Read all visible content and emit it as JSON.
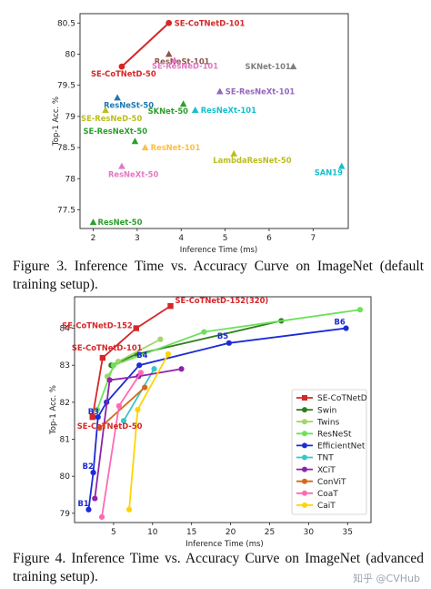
{
  "chart_data": [
    {
      "type": "scatter",
      "xlabel": "Inference Time (ms)",
      "ylabel": "Top-1 Acc. %",
      "xlim": [
        1.7,
        7.8
      ],
      "ylim": [
        77.2,
        80.65
      ],
      "xticks": [
        2,
        3,
        4,
        5,
        6,
        7
      ],
      "yticks": [
        77.5,
        78.0,
        78.5,
        79.0,
        79.5,
        80.0,
        80.5
      ],
      "points": [
        {
          "name": "SE-CoTNetD-101",
          "x": 3.72,
          "y": 80.5,
          "marker": "circle",
          "color": "#d62728"
        },
        {
          "name": "SE-CoTNetD-50",
          "x": 2.65,
          "y": 79.8,
          "marker": "circle",
          "color": "#d62728"
        },
        {
          "name": "ResNeSt-101",
          "x": 3.72,
          "y": 80.0,
          "marker": "triangle",
          "color": "#8c564b"
        },
        {
          "name": "SE-ResNeD-101",
          "x": 3.85,
          "y": 79.9,
          "marker": "triangle",
          "color": "#e377c2"
        },
        {
          "name": "SKNet-101",
          "x": 6.55,
          "y": 79.8,
          "marker": "triangle",
          "color": "#7f7f7f"
        },
        {
          "name": "SE-ResNeXt-101",
          "x": 4.88,
          "y": 79.4,
          "marker": "triangle",
          "color": "#9467bd"
        },
        {
          "name": "ResNeSt-50",
          "x": 2.55,
          "y": 79.3,
          "marker": "triangle",
          "color": "#1f77b4"
        },
        {
          "name": "SKNet-50",
          "x": 4.05,
          "y": 79.2,
          "marker": "triangle",
          "color": "#2ca02c"
        },
        {
          "name": "ResNeXt-101",
          "x": 4.32,
          "y": 79.1,
          "marker": "triangle",
          "color": "#17becf"
        },
        {
          "name": "SE-ResNeD-50",
          "x": 2.28,
          "y": 79.1,
          "marker": "triangle",
          "color": "#bcbd22"
        },
        {
          "name": "SE-ResNeXt-50",
          "x": 2.95,
          "y": 78.6,
          "marker": "triangle",
          "color": "#2ca02c"
        },
        {
          "name": "ResNet-101",
          "x": 3.18,
          "y": 78.5,
          "marker": "triangle",
          "color": "#ffbf40"
        },
        {
          "name": "LambdaResNet-50",
          "x": 5.2,
          "y": 78.4,
          "marker": "triangle",
          "color": "#bcbd22"
        },
        {
          "name": "SAN19",
          "x": 7.65,
          "y": 78.2,
          "marker": "triangle",
          "color": "#17becf"
        },
        {
          "name": "ResNeXt-50",
          "x": 2.65,
          "y": 78.2,
          "marker": "triangle",
          "color": "#e377c2"
        },
        {
          "name": "ResNet-50",
          "x": 2.0,
          "y": 77.3,
          "marker": "triangle",
          "color": "#2ca02c"
        }
      ]
    },
    {
      "type": "line",
      "xlabel": "Inference Time (ms)",
      "ylabel": "Top-1 Acc. %",
      "xlim": [
        0,
        38
      ],
      "ylim": [
        78.75,
        84.85
      ],
      "xticks": [
        5,
        10,
        15,
        20,
        25,
        30,
        35
      ],
      "yticks": [
        79,
        80,
        81,
        82,
        83,
        84
      ],
      "series": [
        {
          "name": "SE-CoTNetD",
          "color": "#d62728",
          "marker": "square",
          "x": [
            2.3,
            3.6,
            7.9,
            12.3
          ],
          "y": [
            81.6,
            83.2,
            84.0,
            84.6
          ]
        },
        {
          "name": "Swin",
          "color": "#2e7d1e",
          "marker": "circle",
          "x": [
            4.7,
            8.0,
            26.5
          ],
          "y": [
            83.0,
            83.3,
            84.2
          ]
        },
        {
          "name": "Twins",
          "color": "#a5d46a",
          "marker": "circle",
          "x": [
            4.2,
            5.6,
            11.0
          ],
          "y": [
            82.7,
            83.1,
            83.7
          ]
        },
        {
          "name": "ResNeSt",
          "color": "#6ee05a",
          "marker": "circle",
          "x": [
            2.9,
            5.0,
            16.6,
            36.6
          ],
          "y": [
            81.8,
            83.0,
            83.9,
            84.5
          ]
        },
        {
          "name": "EfficientNet",
          "color": "#1c2bd6",
          "marker": "circle",
          "x": [
            1.8,
            2.4,
            3.0,
            4.1,
            8.3,
            19.8,
            34.8
          ],
          "y": [
            79.1,
            80.1,
            81.6,
            82.0,
            83.0,
            83.6,
            84.0
          ]
        },
        {
          "name": "TNT",
          "color": "#39c6c6",
          "marker": "circle",
          "x": [
            6.3,
            10.2
          ],
          "y": [
            81.5,
            82.9
          ]
        },
        {
          "name": "XCiT",
          "color": "#8e24aa",
          "marker": "circle",
          "x": [
            2.6,
            4.5,
            8.2,
            13.7
          ],
          "y": [
            79.4,
            82.6,
            82.7,
            82.9
          ]
        },
        {
          "name": "ConViT",
          "color": "#d2691e",
          "marker": "circle",
          "x": [
            3.2,
            9.0
          ],
          "y": [
            81.3,
            82.4
          ]
        },
        {
          "name": "CoaT",
          "color": "#ff69b4",
          "marker": "circle",
          "x": [
            3.5,
            5.7,
            8.5
          ],
          "y": [
            78.9,
            81.9,
            82.8
          ]
        },
        {
          "name": "CaiT",
          "color": "#ffd400",
          "marker": "circle",
          "x": [
            7.0,
            8.1,
            12.0
          ],
          "y": [
            79.1,
            81.8,
            83.3
          ]
        }
      ],
      "annotations": [
        {
          "text": "SE-CoTNetD-152(320)",
          "x": 12.3,
          "y": 84.6,
          "color": "#d62728"
        },
        {
          "text": "SE-CoTNetD-152",
          "x": 7.9,
          "y": 84.0,
          "color": "#d62728"
        },
        {
          "text": "SE-CoTNetD-101",
          "x": 3.6,
          "y": 83.2,
          "color": "#d62728"
        },
        {
          "text": "SE-CoTNetD-50",
          "x": 2.3,
          "y": 81.6,
          "color": "#d62728"
        },
        {
          "text": "B1",
          "x": 1.8,
          "y": 79.1,
          "color": "#1c2bd6"
        },
        {
          "text": "B2",
          "x": 2.4,
          "y": 80.1,
          "color": "#1c2bd6"
        },
        {
          "text": "B3",
          "x": 3.0,
          "y": 81.6,
          "color": "#1c2bd6"
        },
        {
          "text": "B4",
          "x": 8.3,
          "y": 83.0,
          "color": "#1c2bd6"
        },
        {
          "text": "B5",
          "x": 19.8,
          "y": 83.6,
          "color": "#1c2bd6"
        },
        {
          "text": "B6",
          "x": 34.8,
          "y": 84.0,
          "color": "#1c2bd6"
        }
      ],
      "legend": "center-right"
    }
  ],
  "captions": {
    "fig3": "Figure 3. Inference Time vs. Accuracy Curve on ImageNet (default training setup).",
    "fig4": "Figure 4. Inference Time vs. Accuracy Curve on ImageNet (advanced training setup)."
  },
  "watermark": "知乎 @CVHub"
}
